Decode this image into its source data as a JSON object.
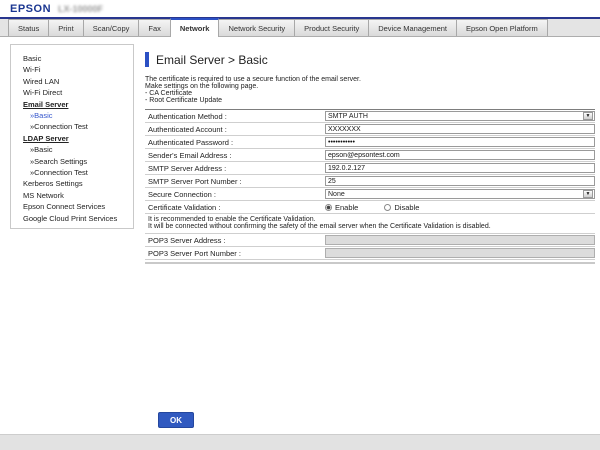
{
  "header": {
    "logo": "EPSON",
    "model": "LX-10000F"
  },
  "tabs": [
    {
      "label": "Status"
    },
    {
      "label": "Print"
    },
    {
      "label": "Scan/Copy"
    },
    {
      "label": "Fax"
    },
    {
      "label": "Network",
      "active": true
    },
    {
      "label": "Network Security"
    },
    {
      "label": "Product Security"
    },
    {
      "label": "Device Management"
    },
    {
      "label": "Epson Open Platform"
    }
  ],
  "sidebar": {
    "items": [
      {
        "label": "Basic"
      },
      {
        "label": "Wi-Fi"
      },
      {
        "label": "Wired LAN"
      },
      {
        "label": "Wi-Fi Direct"
      },
      {
        "label": "Email Server",
        "type": "section"
      },
      {
        "prefix": "»",
        "label": "Basic",
        "type": "sub",
        "active": true
      },
      {
        "prefix": "»",
        "label": "Connection Test",
        "type": "sub"
      },
      {
        "label": "LDAP Server",
        "type": "section"
      },
      {
        "prefix": "»",
        "label": "Basic",
        "type": "sub"
      },
      {
        "prefix": "»",
        "label": "Search Settings",
        "type": "sub"
      },
      {
        "prefix": "»",
        "label": "Connection Test",
        "type": "sub"
      },
      {
        "label": "Kerberos Settings"
      },
      {
        "label": "MS Network"
      },
      {
        "label": "Epson Connect Services"
      },
      {
        "label": "Google Cloud Print Services"
      }
    ]
  },
  "main": {
    "title": "Email Server > Basic",
    "description_lines": [
      "The certificate is required to use a secure function of the email server.",
      "Make settings on the following page.",
      "- CA Certificate",
      "- Root Certificate Update"
    ],
    "form": {
      "rows": [
        {
          "label": "Authentication Method :",
          "value": "SMTP AUTH",
          "control": "select"
        },
        {
          "label": "Authenticated Account :",
          "value": "XXXXXXX",
          "control": "text"
        },
        {
          "label": "Authenticated Password :",
          "value": "•••••••••••",
          "control": "password"
        },
        {
          "label": "Sender's Email Address :",
          "value": "epson@epsontest.com",
          "control": "text"
        },
        {
          "label": "SMTP Server Address :",
          "value": "192.0.2.127",
          "control": "text"
        },
        {
          "label": "SMTP Server Port Number :",
          "value": "25",
          "control": "text"
        },
        {
          "label": "Secure Connection :",
          "value": "None",
          "control": "select"
        },
        {
          "label": "Certificate Validation :",
          "control": "radio",
          "options": [
            {
              "label": "Enable",
              "selected": true
            },
            {
              "label": "Disable",
              "selected": false
            }
          ]
        },
        {
          "label": "POP3 Server Address :",
          "value": "",
          "control": "text-disabled"
        },
        {
          "label": "POP3 Server Port Number :",
          "value": "",
          "control": "text-disabled"
        }
      ]
    },
    "note_lines": [
      "It is recommended to enable the Certificate Validation.",
      "It will be connected without confirming the safety of the email server when the Certificate Validation is disabled."
    ],
    "ok_button": "OK"
  },
  "icons": {
    "dropdown": "▼"
  },
  "colors": {
    "accent_blue": "#2b50c4",
    "logo_blue": "#1a3691",
    "link_blue": "#3355cc",
    "ok_button_blue": "#3059c0",
    "header_line_blue": "#28368e"
  }
}
